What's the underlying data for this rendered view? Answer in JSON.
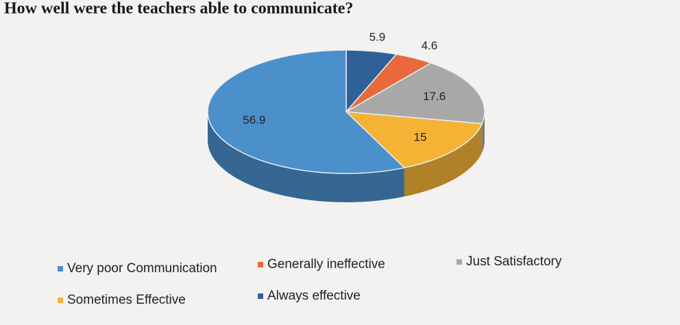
{
  "chart_data": {
    "type": "pie3d",
    "title": "How well were the teachers able to communicate?",
    "categories": [
      "Always effective",
      "Generally ineffective",
      "Just Satisfactory",
      "Sometimes Effective",
      "Very poor Communication"
    ],
    "values": [
      5.9,
      4.6,
      17.6,
      15,
      56.9
    ],
    "colors": [
      "#2f6198",
      "#e8693b",
      "#a8a8a8",
      "#f5b335",
      "#4b8fcb"
    ]
  }
}
